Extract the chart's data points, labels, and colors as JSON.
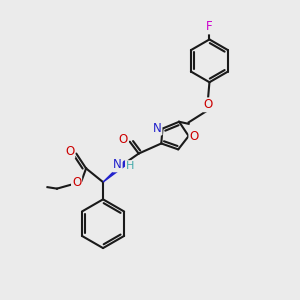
{
  "bg": "#ebebeb",
  "lc": "#1a1a1a",
  "lw": 1.5,
  "fs": 8.0,
  "colors": {
    "F": "#cc00cc",
    "O": "#cc0000",
    "N": "#2222cc",
    "H": "#44aaaa",
    "C": "#1a1a1a"
  },
  "xlim": [
    0,
    10
  ],
  "ylim": [
    0,
    10
  ]
}
